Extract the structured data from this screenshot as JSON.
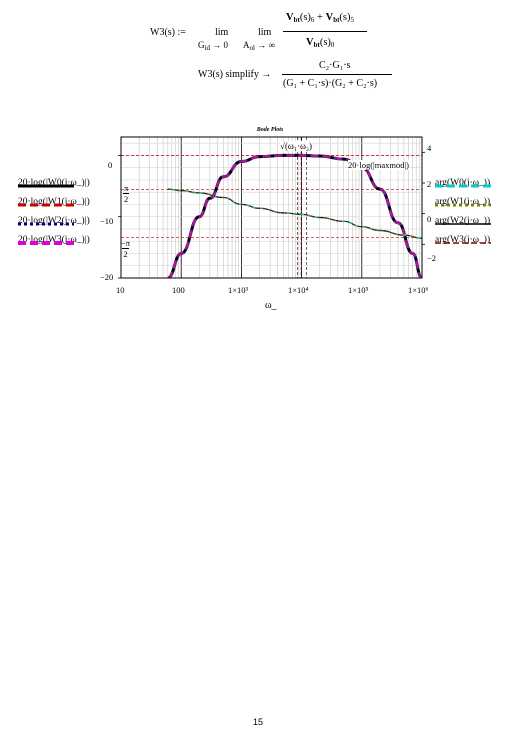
{
  "formula1": {
    "lhs": "W3(s) :=",
    "lim1": "lim",
    "lim1_under": "G",
    "lim1_under_sub": "id",
    "lim1_under_rest": " → 0",
    "lim2": "lim",
    "lim2_under": "A",
    "lim2_under_sub": "ol",
    "lim2_under_rest": " → ∞",
    "num_a": "V",
    "num_a_sub": "bt",
    "num_a_arg": "(s)",
    "num_a_idx": "6",
    "plus": " + ",
    "num_b": "V",
    "num_b_sub": "bt",
    "num_b_arg": "(s)",
    "num_b_idx": "5",
    "den": "V",
    "den_sub": "bt",
    "den_arg": "(s)",
    "den_idx": "0"
  },
  "formula2": {
    "lhs": "W3(s) simplify →",
    "num": "C₂·G₁·s",
    "den": "(G₁ + C₁·s)·(G₂ + C₂·s)"
  },
  "chart_data": {
    "type": "line",
    "title": "Bode Plots",
    "xlabel": "ω_",
    "xscale": "log",
    "xlim": [
      10,
      1000000
    ],
    "x_tick_labels": [
      "10",
      "100",
      "1×10³",
      "1×10⁴",
      "1×10⁵",
      "1×10⁶"
    ],
    "y_left_lim": [
      -20,
      3
    ],
    "y_left_tick_labels": [
      "0",
      "−10",
      "−20"
    ],
    "y_left_pi_labels": [
      {
        "num": "π",
        "den": "2"
      },
      {
        "num": "−π",
        "den": "2"
      }
    ],
    "y_right_lim": [
      -4.2,
      5
    ],
    "y_right_tick_labels": [
      "4",
      "2",
      "0",
      "−2"
    ],
    "annotations": {
      "sqrt_marker": "√(ω₁·ω₂)",
      "maxmod_marker": "20·log(|maxmod|)"
    },
    "left_legend": [
      {
        "label": "20·log(|W0(j·ω_)|)",
        "color": "#000000",
        "style": "solid"
      },
      {
        "label": "20·log(|W1(j·ω_)|)",
        "color": "#cc0000",
        "style": "dashed"
      },
      {
        "label": "20·log(|W2(j·ω_)|)",
        "color": "#000080",
        "style": "dotted"
      },
      {
        "label": "20·log(|W3(j·ω_)|)",
        "color": "#dd00dd",
        "style": "dashed"
      }
    ],
    "right_legend": [
      {
        "label": "arg(W0(j·ω_))",
        "color": "#00cccc",
        "style": "dashed"
      },
      {
        "label": "arg(W1(j·ω_))",
        "color": "#808000",
        "style": "dotted"
      },
      {
        "label": "arg(W2(j·ω_))",
        "color": "#000000",
        "style": "solid"
      },
      {
        "label": "arg(W3(j·ω_))",
        "color": "#800000",
        "style": "dashed"
      }
    ],
    "series": [
      {
        "axis": "left",
        "style": "magnitude",
        "x": [
          60,
          100,
          200,
          300,
          500,
          1000,
          2000,
          5000,
          10000,
          20000,
          50000,
          100000,
          200000,
          400000,
          700000,
          1000000
        ],
        "y": [
          -20,
          -16,
          -10,
          -7,
          -3.5,
          -1,
          -0.2,
          0,
          0,
          -0.1,
          -0.6,
          -2,
          -5.5,
          -11,
          -16,
          -20
        ]
      },
      {
        "axis": "right",
        "style": "phase",
        "x": [
          60,
          100,
          200,
          500,
          1000,
          2000,
          5000,
          10000,
          20000,
          50000,
          100000,
          200000,
          500000,
          1000000
        ],
        "y": [
          1.6,
          1.5,
          1.35,
          1.05,
          0.6,
          0.35,
          0.05,
          -0.05,
          -0.25,
          -0.5,
          -0.85,
          -1.1,
          -1.4,
          -1.6
        ]
      }
    ]
  },
  "page_number": "15"
}
